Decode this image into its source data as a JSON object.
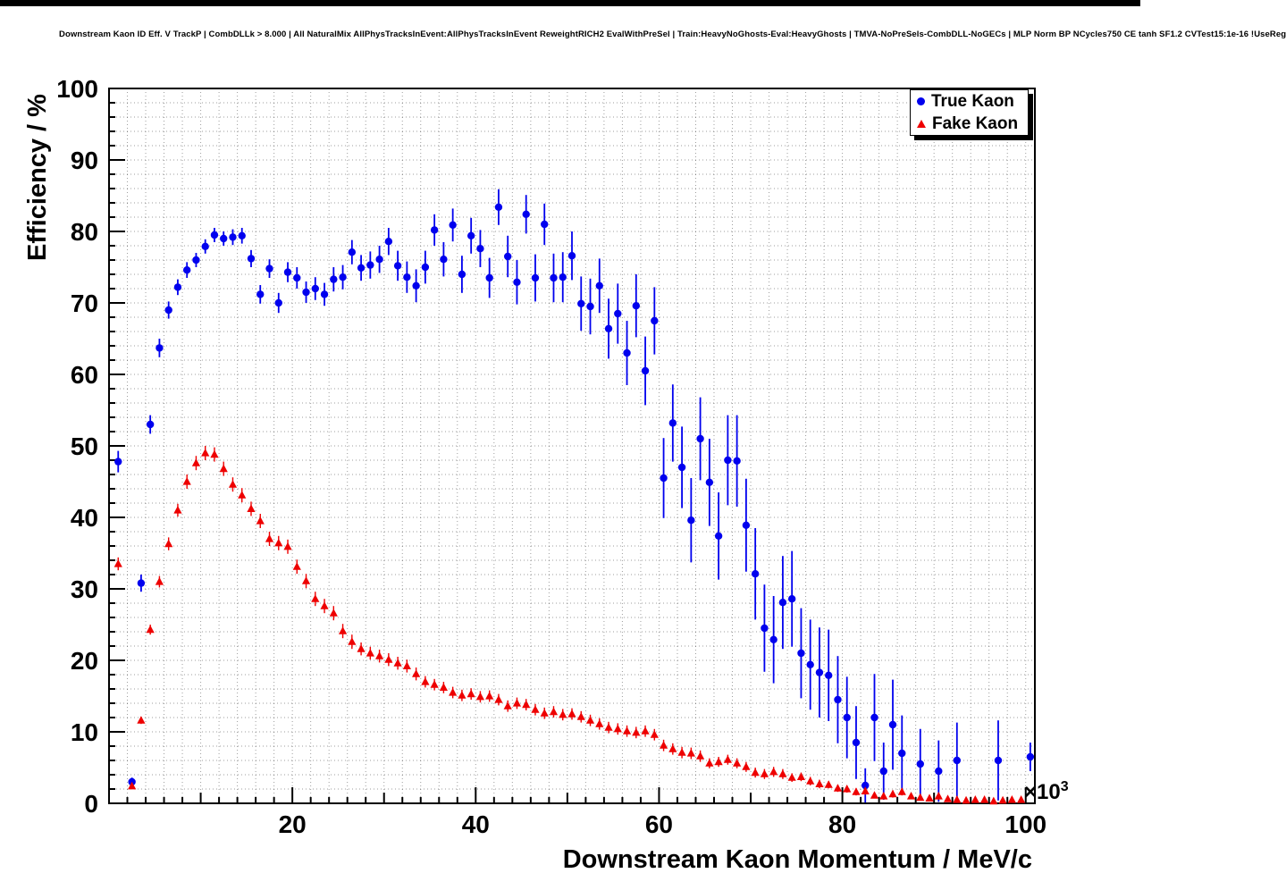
{
  "chart_data": {
    "type": "scatter",
    "title": "Downstream Kaon ID Eff. V TrackP | CombDLLk > 8.000 | All NaturalMix AllPhysTracksInEvent:AllPhysTracksInEvent ReweightRICH2 EvalWithPreSel | Train:HeavyNoGhosts-Eval:HeavyGhosts | TMVA-NoPreSels-CombDLL-NoGECs | MLP Norm BP NCycles750 CE tanh SF1.2 CVTest15:1e-16 !UseReg",
    "xlabel": "Downstream Kaon Momentum / MeV/c",
    "ylabel": "Efficiency / %",
    "x_axis_multiplier": {
      "base": "×10",
      "exp": "3"
    },
    "xlim": [
      0,
      101
    ],
    "ylim": [
      0,
      100
    ],
    "xticks": [
      20,
      40,
      60,
      80,
      100
    ],
    "yticks": [
      0,
      10,
      20,
      30,
      40,
      50,
      60,
      70,
      80,
      90,
      100
    ],
    "grid": {
      "on": true,
      "style": "dotted",
      "step_x": 2,
      "step_y": 2
    },
    "legend": {
      "position": "top-right"
    },
    "series": [
      {
        "name": "True Kaon",
        "marker": "circle",
        "color": "#0000ee",
        "points": [
          [
            1.0,
            47.8,
            1.5
          ],
          [
            2.5,
            3.0,
            0.6
          ],
          [
            3.5,
            30.8,
            1.2
          ],
          [
            4.5,
            53.0,
            1.3
          ],
          [
            5.5,
            63.7,
            1.3
          ],
          [
            6.5,
            69.0,
            1.2
          ],
          [
            7.5,
            72.2,
            1.1
          ],
          [
            8.5,
            74.6,
            1.1
          ],
          [
            9.5,
            76.0,
            1.0
          ],
          [
            10.5,
            77.9,
            1.0
          ],
          [
            11.5,
            79.5,
            1.0
          ],
          [
            12.5,
            79.0,
            1.0
          ],
          [
            13.5,
            79.2,
            1.1
          ],
          [
            14.5,
            79.4,
            1.1
          ],
          [
            15.5,
            76.2,
            1.2
          ],
          [
            16.5,
            71.2,
            1.3
          ],
          [
            17.5,
            74.8,
            1.3
          ],
          [
            18.5,
            70.0,
            1.4
          ],
          [
            19.5,
            74.3,
            1.4
          ],
          [
            20.5,
            73.5,
            1.5
          ],
          [
            21.5,
            71.5,
            1.5
          ],
          [
            22.5,
            72.0,
            1.6
          ],
          [
            23.5,
            71.2,
            1.6
          ],
          [
            24.5,
            73.3,
            1.7
          ],
          [
            25.5,
            73.6,
            1.7
          ],
          [
            26.5,
            77.1,
            1.7
          ],
          [
            27.5,
            74.9,
            1.8
          ],
          [
            28.5,
            75.3,
            1.9
          ],
          [
            29.5,
            76.1,
            1.9
          ],
          [
            30.5,
            78.6,
            1.9
          ],
          [
            31.5,
            75.2,
            2.1
          ],
          [
            32.5,
            73.6,
            2.2
          ],
          [
            33.5,
            72.4,
            2.3
          ],
          [
            34.5,
            75.0,
            2.3
          ],
          [
            35.5,
            80.2,
            2.2
          ],
          [
            36.5,
            76.1,
            2.4
          ],
          [
            37.5,
            80.9,
            2.3
          ],
          [
            38.5,
            74.0,
            2.6
          ],
          [
            39.5,
            79.4,
            2.5
          ],
          [
            40.5,
            77.6,
            2.6
          ],
          [
            41.5,
            73.5,
            2.8
          ],
          [
            42.5,
            83.4,
            2.5
          ],
          [
            43.5,
            76.5,
            2.9
          ],
          [
            44.5,
            72.9,
            3.1
          ],
          [
            45.5,
            82.4,
            2.7
          ],
          [
            46.5,
            73.5,
            3.3
          ],
          [
            47.5,
            81.0,
            2.9
          ],
          [
            48.5,
            73.5,
            3.4
          ],
          [
            49.5,
            73.6,
            3.5
          ],
          [
            50.5,
            76.6,
            3.4
          ],
          [
            51.5,
            69.9,
            3.8
          ],
          [
            52.5,
            69.5,
            3.9
          ],
          [
            53.5,
            72.4,
            3.8
          ],
          [
            54.5,
            66.4,
            4.2
          ],
          [
            55.5,
            68.5,
            4.2
          ],
          [
            56.5,
            63.0,
            4.5
          ],
          [
            57.5,
            69.6,
            4.4
          ],
          [
            58.5,
            60.5,
            4.8
          ],
          [
            59.5,
            67.5,
            4.7
          ],
          [
            60.5,
            45.5,
            5.6
          ],
          [
            61.5,
            53.2,
            5.4
          ],
          [
            62.5,
            47.0,
            5.7
          ],
          [
            63.5,
            39.6,
            5.9
          ],
          [
            64.5,
            51.0,
            5.8
          ],
          [
            65.5,
            44.9,
            6.1
          ],
          [
            66.5,
            37.4,
            6.1
          ],
          [
            67.5,
            48.0,
            6.3
          ],
          [
            68.5,
            47.9,
            6.4
          ],
          [
            69.5,
            38.9,
            6.5
          ],
          [
            70.5,
            32.1,
            6.4
          ],
          [
            71.5,
            24.5,
            6.1
          ],
          [
            72.5,
            22.9,
            6.1
          ],
          [
            73.5,
            28.1,
            6.5
          ],
          [
            74.5,
            28.6,
            6.7
          ],
          [
            75.5,
            21.0,
            6.3
          ],
          [
            76.5,
            19.4,
            6.3
          ],
          [
            77.5,
            18.3,
            6.3
          ],
          [
            78.5,
            17.9,
            6.4
          ],
          [
            79.5,
            14.5,
            6.1
          ],
          [
            80.5,
            12.0,
            5.7
          ],
          [
            81.5,
            8.5,
            5.1
          ],
          [
            82.5,
            2.5,
            2.4
          ],
          [
            83.5,
            12.0,
            6.1
          ],
          [
            84.5,
            4.5,
            4.0
          ],
          [
            85.5,
            11.0,
            6.3
          ],
          [
            86.5,
            7.0,
            5.3
          ],
          [
            88.5,
            5.5,
            4.9
          ],
          [
            90.5,
            4.5,
            4.3
          ],
          [
            92.5,
            6.0,
            5.3
          ],
          [
            97.0,
            6.0,
            5.6
          ],
          [
            100.5,
            6.5,
            2.0
          ]
        ]
      },
      {
        "name": "Fake Kaon",
        "marker": "triangle",
        "color": "#ee0000",
        "points": [
          [
            1.0,
            33.5,
            0.9
          ],
          [
            2.5,
            2.4,
            0.3
          ],
          [
            3.5,
            11.6,
            0.5
          ],
          [
            4.5,
            24.3,
            0.7
          ],
          [
            5.5,
            31.0,
            0.8
          ],
          [
            6.5,
            36.3,
            0.9
          ],
          [
            7.5,
            41.0,
            0.9
          ],
          [
            8.5,
            45.0,
            1.0
          ],
          [
            9.5,
            47.6,
            1.0
          ],
          [
            10.5,
            49.0,
            1.0
          ],
          [
            11.5,
            48.8,
            1.0
          ],
          [
            12.5,
            46.8,
            1.0
          ],
          [
            13.5,
            44.6,
            1.0
          ],
          [
            14.5,
            43.1,
            1.0
          ],
          [
            15.5,
            41.2,
            1.0
          ],
          [
            16.5,
            39.5,
            1.0
          ],
          [
            17.5,
            37.0,
            1.0
          ],
          [
            18.5,
            36.4,
            1.0
          ],
          [
            19.5,
            35.9,
            1.0
          ],
          [
            20.5,
            33.1,
            1.0
          ],
          [
            21.5,
            31.1,
            1.0
          ],
          [
            22.5,
            28.6,
            1.0
          ],
          [
            23.5,
            27.6,
            1.0
          ],
          [
            24.5,
            26.6,
            1.0
          ],
          [
            25.5,
            24.1,
            1.0
          ],
          [
            26.5,
            22.6,
            1.0
          ],
          [
            27.5,
            21.6,
            0.9
          ],
          [
            28.5,
            21.0,
            0.9
          ],
          [
            29.5,
            20.6,
            0.9
          ],
          [
            30.5,
            20.1,
            0.9
          ],
          [
            31.5,
            19.6,
            0.9
          ],
          [
            32.5,
            19.2,
            0.9
          ],
          [
            33.5,
            18.1,
            0.9
          ],
          [
            34.5,
            17.0,
            0.8
          ],
          [
            35.5,
            16.6,
            0.8
          ],
          [
            36.5,
            16.2,
            0.8
          ],
          [
            37.5,
            15.5,
            0.8
          ],
          [
            38.5,
            15.1,
            0.8
          ],
          [
            39.5,
            15.3,
            0.8
          ],
          [
            40.5,
            14.9,
            0.8
          ],
          [
            41.5,
            15.0,
            0.8
          ],
          [
            42.5,
            14.5,
            0.8
          ],
          [
            43.5,
            13.6,
            0.8
          ],
          [
            44.5,
            14.0,
            0.8
          ],
          [
            45.5,
            13.8,
            0.8
          ],
          [
            46.5,
            13.1,
            0.8
          ],
          [
            47.5,
            12.6,
            0.8
          ],
          [
            48.5,
            12.8,
            0.8
          ],
          [
            49.5,
            12.4,
            0.8
          ],
          [
            50.5,
            12.5,
            0.8
          ],
          [
            51.5,
            12.1,
            0.8
          ],
          [
            52.5,
            11.6,
            0.8
          ],
          [
            53.5,
            11.1,
            0.8
          ],
          [
            54.5,
            10.6,
            0.8
          ],
          [
            55.5,
            10.4,
            0.8
          ],
          [
            56.5,
            10.1,
            0.8
          ],
          [
            57.5,
            9.9,
            0.8
          ],
          [
            58.5,
            10.1,
            0.8
          ],
          [
            59.5,
            9.6,
            0.8
          ],
          [
            60.5,
            8.1,
            0.8
          ],
          [
            61.5,
            7.6,
            0.8
          ],
          [
            62.5,
            7.1,
            0.8
          ],
          [
            63.5,
            7.0,
            0.8
          ],
          [
            64.5,
            6.6,
            0.8
          ],
          [
            65.5,
            5.6,
            0.7
          ],
          [
            66.5,
            5.8,
            0.7
          ],
          [
            67.5,
            6.1,
            0.7
          ],
          [
            68.5,
            5.6,
            0.7
          ],
          [
            69.5,
            5.1,
            0.7
          ],
          [
            70.5,
            4.3,
            0.7
          ],
          [
            71.5,
            4.1,
            0.7
          ],
          [
            72.5,
            4.4,
            0.7
          ],
          [
            73.5,
            4.1,
            0.7
          ],
          [
            74.5,
            3.6,
            0.6
          ],
          [
            75.5,
            3.7,
            0.6
          ],
          [
            76.5,
            3.1,
            0.6
          ],
          [
            77.5,
            2.7,
            0.6
          ],
          [
            78.5,
            2.6,
            0.5
          ],
          [
            79.5,
            2.1,
            0.5
          ],
          [
            80.5,
            2.0,
            0.5
          ],
          [
            81.5,
            1.6,
            0.5
          ],
          [
            82.5,
            1.7,
            0.5
          ],
          [
            83.5,
            1.1,
            0.4
          ],
          [
            84.5,
            1.0,
            0.4
          ],
          [
            85.5,
            1.3,
            0.5
          ],
          [
            86.5,
            1.6,
            0.5
          ],
          [
            87.5,
            1.0,
            0.4
          ],
          [
            88.5,
            0.8,
            0.4
          ],
          [
            89.5,
            0.7,
            0.4
          ],
          [
            90.5,
            1.0,
            0.5
          ],
          [
            91.5,
            0.6,
            0.4
          ],
          [
            92.5,
            0.5,
            0.3
          ],
          [
            93.5,
            0.4,
            0.3
          ],
          [
            94.5,
            0.5,
            0.4
          ],
          [
            95.5,
            0.5,
            0.4
          ],
          [
            96.5,
            0.3,
            0.3
          ],
          [
            97.5,
            0.4,
            0.4
          ],
          [
            98.5,
            0.5,
            0.4
          ],
          [
            99.5,
            0.5,
            0.4
          ]
        ]
      }
    ]
  }
}
